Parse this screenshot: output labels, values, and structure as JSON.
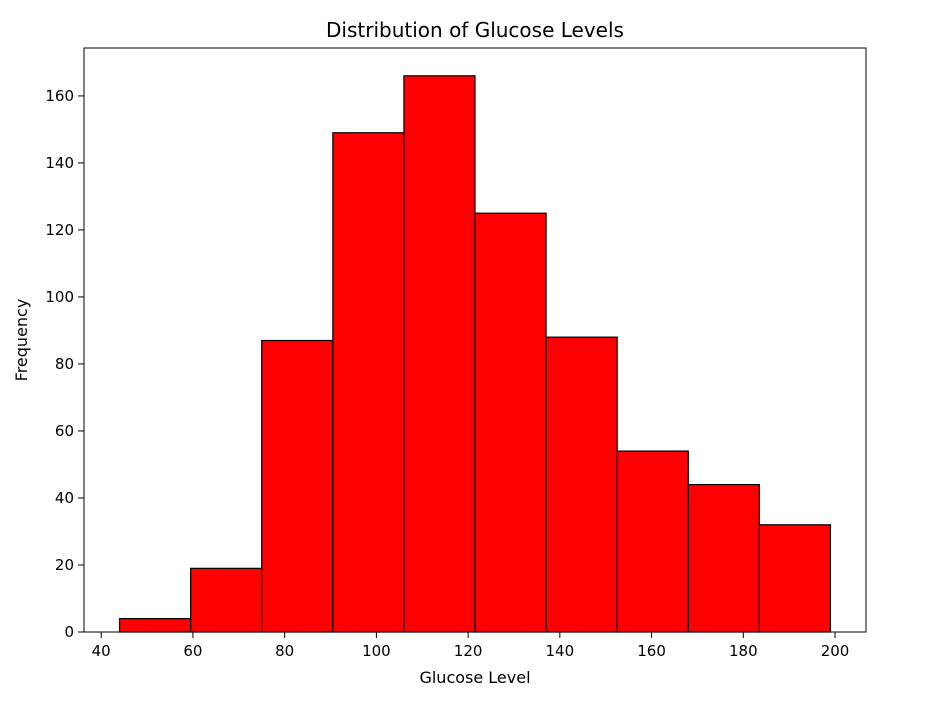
{
  "chart_data": {
    "type": "bar",
    "title": "Distribution of Glucose Levels",
    "xlabel": "Glucose Level",
    "ylabel": "Frequency",
    "bins": [
      {
        "start": 44.0,
        "end": 59.5,
        "count": 4
      },
      {
        "start": 59.5,
        "end": 75.0,
        "count": 19
      },
      {
        "start": 75.0,
        "end": 90.5,
        "count": 87
      },
      {
        "start": 90.5,
        "end": 106.0,
        "count": 149
      },
      {
        "start": 106.0,
        "end": 121.5,
        "count": 166
      },
      {
        "start": 121.5,
        "end": 137.0,
        "count": 125
      },
      {
        "start": 137.0,
        "end": 152.5,
        "count": 88
      },
      {
        "start": 152.5,
        "end": 168.0,
        "count": 54
      },
      {
        "start": 168.0,
        "end": 183.5,
        "count": 44
      },
      {
        "start": 183.5,
        "end": 199.0,
        "count": 32
      }
    ],
    "xlim": [
      36.25,
      206.75
    ],
    "ylim": [
      0,
      174.3
    ],
    "xticks": [
      40,
      60,
      80,
      100,
      120,
      140,
      160,
      180,
      200
    ],
    "yticks": [
      0,
      20,
      40,
      60,
      80,
      100,
      120,
      140,
      160
    ],
    "bar_color": "#ff0000",
    "edge_color": "#000000",
    "grid": false
  }
}
